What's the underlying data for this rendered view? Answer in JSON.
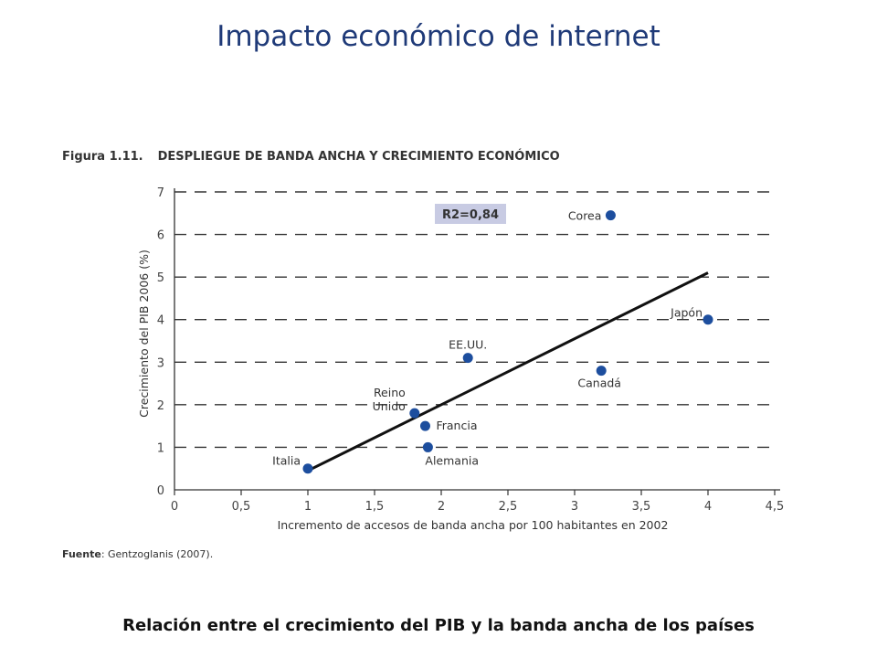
{
  "slide": {
    "title": "Impacto económico de internet",
    "caption": "Relación entre el crecimiento del PIB y la banda ancha de los países"
  },
  "figure": {
    "number": "Figura 1.11.",
    "title": "DESPLIEGUE DE BANDA ANCHA Y CRECIMIENTO ECONÓMICO",
    "source_label": "Fuente",
    "source_text": ": Gentzoglanis (2007)."
  },
  "chart_data": {
    "type": "scatter",
    "xlabel": "Incremento de accesos de banda ancha por 100 habitantes en 2002",
    "ylabel": "Crecimiento del PIB 2006 (%)",
    "xlim": [
      0,
      4.5
    ],
    "ylim": [
      0,
      7
    ],
    "x_ticks": [
      "0",
      "0,5",
      "1",
      "1,5",
      "2",
      "2,5",
      "3",
      "3,5",
      "4",
      "4,5"
    ],
    "y_ticks": [
      "0",
      "1",
      "2",
      "3",
      "4",
      "5",
      "6",
      "7"
    ],
    "grid": "horizontal-dashed",
    "annotation": "R2=0,84",
    "points": [
      {
        "label": "Italia",
        "x": 1.0,
        "y": 0.5
      },
      {
        "label": "Reino Unido",
        "x": 1.8,
        "y": 1.8
      },
      {
        "label": "Francia",
        "x": 1.88,
        "y": 1.5
      },
      {
        "label": "Alemania",
        "x": 1.9,
        "y": 1.0
      },
      {
        "label": "EE.UU.",
        "x": 2.2,
        "y": 3.1
      },
      {
        "label": "Canadá",
        "x": 3.2,
        "y": 2.8
      },
      {
        "label": "Corea",
        "x": 3.27,
        "y": 6.45
      },
      {
        "label": "Japón",
        "x": 4.0,
        "y": 4.0
      }
    ],
    "trendline": {
      "x": [
        1.0,
        4.0
      ],
      "y": [
        0.45,
        5.1
      ]
    },
    "colors": {
      "point": "#1d4e9e",
      "line": "#111111",
      "grid": "#333333",
      "annotation_bg": "#c8cbe3"
    }
  }
}
